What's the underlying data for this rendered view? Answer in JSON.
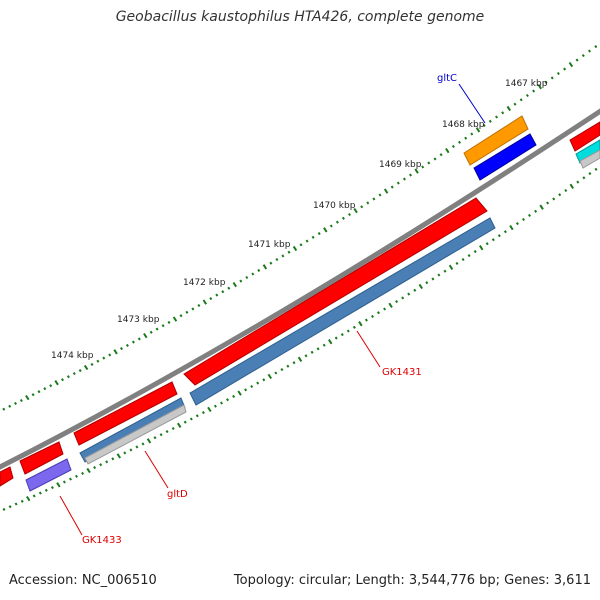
{
  "title": "Geobacillus kaustophilus HTA426, complete genome",
  "footer": {
    "accession": "Accession: NC_006510",
    "stats": "Topology: circular; Length: 3,544,776 bp; Genes: 3,611"
  },
  "axis_ticks": [
    "1467 kbp",
    "1468 kbp",
    "1469 kbp",
    "1470 kbp",
    "1471 kbp",
    "1472 kbp",
    "1473 kbp",
    "1474 kbp"
  ],
  "gene_labels": [
    {
      "name": "gltC",
      "color": "#0000cc"
    },
    {
      "name": "GK1431",
      "color": "#dd0000"
    },
    {
      "name": "gltD",
      "color": "#dd0000"
    },
    {
      "name": "GK1433",
      "color": "#dd0000"
    }
  ],
  "colors": {
    "backbone": "#808080",
    "forward_cds": "#ff0000",
    "reverse_gene_blue": "#4a7fb5",
    "reverse_gene_grey": "#c8c8c8",
    "gltC_upper": "#ff9900",
    "gltC_lower": "#0000ff",
    "GK1433_lower": "#7b68ee",
    "cyan_fragment": "#00dddd",
    "tick_green": "#1a7a1a"
  }
}
